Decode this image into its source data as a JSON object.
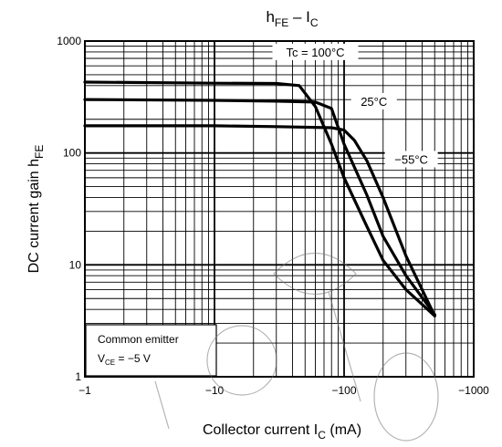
{
  "chart_data": {
    "type": "line",
    "title": {
      "main": "h",
      "sub": "FE",
      "rest": " – I",
      "sub2": "C"
    },
    "xlabel": {
      "text": "Collector current",
      "sym": "I",
      "sub": "C",
      "unit": "(mA)"
    },
    "ylabel": {
      "text": "DC current gain",
      "sym": "h",
      "sub": "FE"
    },
    "xscale": "log",
    "yscale": "log",
    "xlim": [
      -1,
      -1000
    ],
    "ylim": [
      1,
      1000
    ],
    "xticks": [
      {
        "value": -1,
        "label": "−1"
      },
      {
        "value": -10,
        "label": "−10"
      },
      {
        "value": -100,
        "label": "−100"
      },
      {
        "value": -1000,
        "label": "−1000"
      }
    ],
    "yticks": [
      {
        "value": 1,
        "label": "1"
      },
      {
        "value": 10,
        "label": "10"
      },
      {
        "value": 100,
        "label": "100"
      },
      {
        "value": 1000,
        "label": "1000"
      }
    ],
    "grid": true,
    "series": [
      {
        "name": "Tc = 100°C",
        "x": [
          -1,
          -10,
          -30,
          -45,
          -60,
          -80,
          -100,
          -150,
          -200,
          -300,
          -500
        ],
        "y": [
          430,
          420,
          418,
          400,
          260,
          120,
          60,
          22,
          11,
          6,
          3.5
        ]
      },
      {
        "name": "25°C",
        "x": [
          -1,
          -10,
          -30,
          -60,
          -80,
          -100,
          -150,
          -200,
          -300,
          -500
        ],
        "y": [
          300,
          295,
          290,
          285,
          250,
          120,
          42,
          18,
          8,
          3.6
        ]
      },
      {
        "name": "−55°C",
        "x": [
          -1,
          -10,
          -30,
          -80,
          -100,
          -120,
          -150,
          -200,
          -300,
          -500
        ],
        "y": [
          175,
          175,
          172,
          168,
          160,
          130,
          85,
          40,
          12,
          3.5
        ]
      }
    ],
    "note": {
      "line1": "Common emitter",
      "line2_sym": "V",
      "line2_sub": "CE",
      "line2_rest": " = −5 V"
    }
  }
}
